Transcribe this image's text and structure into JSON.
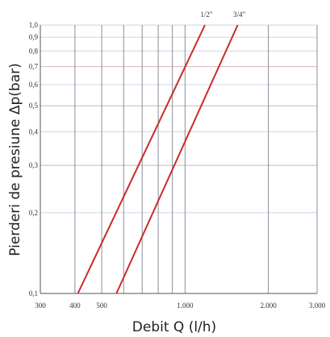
{
  "chart_data": {
    "type": "line",
    "title": "",
    "xlabel": "Debit Q (l/h)",
    "ylabel": "Pierderi de presiune Δp(bar)",
    "xscale": "log",
    "yscale": "log",
    "xlim": [
      300,
      3000
    ],
    "ylim": [
      0.1,
      1.0
    ],
    "grid": true,
    "x_ticks": [
      {
        "value": 300,
        "label": "300"
      },
      {
        "value": 400,
        "label": "400"
      },
      {
        "value": 500,
        "label": "500"
      },
      {
        "value": 1000,
        "label": "1.000"
      },
      {
        "value": 2000,
        "label": "2.000"
      },
      {
        "value": 3000,
        "label": "3.000"
      }
    ],
    "x_gridlines": [
      300,
      400,
      500,
      600,
      700,
      800,
      900,
      1000,
      2000,
      3000
    ],
    "y_ticks": [
      {
        "value": 0.1,
        "label": "0,1"
      },
      {
        "value": 0.2,
        "label": "0,2"
      },
      {
        "value": 0.3,
        "label": "0,3"
      },
      {
        "value": 0.4,
        "label": "0,4"
      },
      {
        "value": 0.5,
        "label": "0,5"
      },
      {
        "value": 0.6,
        "label": "0,6"
      },
      {
        "value": 0.7,
        "label": "0,7"
      },
      {
        "value": 0.8,
        "label": "0,8"
      },
      {
        "value": 0.9,
        "label": "0,9"
      },
      {
        "value": 1.0,
        "label": "1,0"
      }
    ],
    "y_gridline_colors": {
      "0.1": "#cfd6e6",
      "0.2": "#cfd6e6",
      "0.3": "#d8b4b4",
      "0.4": "#cfd6e6",
      "0.5": "#d8b4b4",
      "0.6": "#cfd6e6",
      "0.7": "#d8b4b4",
      "0.8": "#cfd6e6",
      "0.9": "#cfd6e6",
      "1.0": "#cfd6e6"
    },
    "series": [
      {
        "name": "1/2\"",
        "color": "#cc2a2a",
        "points": [
          [
            410,
            0.1
          ],
          [
            1180,
            1.0
          ]
        ]
      },
      {
        "name": "3/4\"",
        "color": "#cc2a2a",
        "points": [
          [
            565,
            0.1
          ],
          [
            1550,
            1.0
          ]
        ]
      }
    ]
  }
}
